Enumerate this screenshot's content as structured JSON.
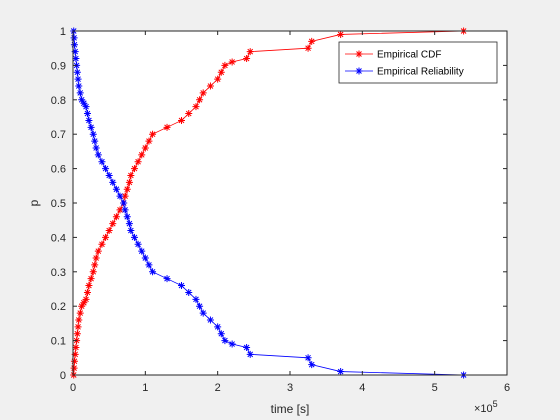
{
  "chart_data": {
    "type": "line",
    "title": "",
    "xlabel": "time [s]",
    "ylabel": "p",
    "x_exponent_label": "×10",
    "x_exponent_power": "5",
    "xlim": [
      0,
      6
    ],
    "ylim": [
      0,
      1
    ],
    "xticks": [
      0,
      1,
      2,
      3,
      4,
      5,
      6
    ],
    "yticks": [
      0,
      0.1,
      0.2,
      0.3,
      0.4,
      0.5,
      0.6,
      0.7,
      0.8,
      0.9,
      1
    ],
    "xtick_labels": [
      "0",
      "1",
      "2",
      "3",
      "4",
      "5",
      "6"
    ],
    "ytick_labels": [
      "0",
      "0.1",
      "0.2",
      "0.3",
      "0.4",
      "0.5",
      "0.6",
      "0.7",
      "0.8",
      "0.9",
      "1"
    ],
    "grid": false,
    "legend_position": "top-right",
    "legend_entries": [
      "Empirical CDF",
      "Empirical Reliability"
    ],
    "series": [
      {
        "name": "Empirical CDF",
        "color": "#ff0000",
        "marker": "asterisk",
        "x": [
          0.01,
          0.015,
          0.02,
          0.03,
          0.04,
          0.05,
          0.06,
          0.07,
          0.08,
          0.1,
          0.12,
          0.15,
          0.18,
          0.2,
          0.22,
          0.25,
          0.28,
          0.3,
          0.32,
          0.35,
          0.4,
          0.45,
          0.5,
          0.55,
          0.6,
          0.65,
          0.7,
          0.72,
          0.75,
          0.78,
          0.8,
          0.85,
          0.9,
          0.95,
          1.0,
          1.05,
          1.1,
          1.3,
          1.5,
          1.6,
          1.7,
          1.75,
          1.8,
          1.9,
          2.0,
          2.05,
          2.1,
          2.2,
          2.4,
          2.45,
          3.25,
          3.3,
          3.7,
          5.4
        ],
        "y": [
          0.0,
          0.02,
          0.04,
          0.06,
          0.08,
          0.1,
          0.12,
          0.14,
          0.16,
          0.18,
          0.2,
          0.21,
          0.22,
          0.24,
          0.26,
          0.28,
          0.3,
          0.32,
          0.34,
          0.36,
          0.38,
          0.4,
          0.42,
          0.44,
          0.46,
          0.48,
          0.5,
          0.52,
          0.54,
          0.56,
          0.58,
          0.6,
          0.62,
          0.64,
          0.66,
          0.68,
          0.7,
          0.72,
          0.74,
          0.76,
          0.78,
          0.8,
          0.82,
          0.84,
          0.86,
          0.88,
          0.9,
          0.91,
          0.92,
          0.94,
          0.95,
          0.97,
          0.99,
          1.0
        ]
      },
      {
        "name": "Empirical Reliability",
        "color": "#0000ff",
        "marker": "asterisk",
        "x": [
          0.01,
          0.015,
          0.02,
          0.03,
          0.04,
          0.05,
          0.06,
          0.07,
          0.08,
          0.1,
          0.12,
          0.15,
          0.18,
          0.2,
          0.22,
          0.25,
          0.28,
          0.3,
          0.32,
          0.35,
          0.4,
          0.45,
          0.5,
          0.55,
          0.6,
          0.65,
          0.7,
          0.72,
          0.75,
          0.78,
          0.8,
          0.85,
          0.9,
          0.95,
          1.0,
          1.05,
          1.1,
          1.3,
          1.5,
          1.6,
          1.7,
          1.75,
          1.8,
          1.9,
          2.0,
          2.05,
          2.1,
          2.2,
          2.4,
          2.45,
          3.25,
          3.3,
          3.7,
          5.4
        ],
        "y": [
          1.0,
          0.98,
          0.96,
          0.94,
          0.92,
          0.9,
          0.88,
          0.86,
          0.84,
          0.82,
          0.8,
          0.79,
          0.78,
          0.76,
          0.74,
          0.72,
          0.7,
          0.68,
          0.66,
          0.64,
          0.62,
          0.6,
          0.58,
          0.56,
          0.54,
          0.52,
          0.5,
          0.48,
          0.46,
          0.44,
          0.42,
          0.4,
          0.38,
          0.36,
          0.34,
          0.32,
          0.3,
          0.28,
          0.26,
          0.24,
          0.22,
          0.2,
          0.18,
          0.16,
          0.14,
          0.12,
          0.1,
          0.09,
          0.08,
          0.06,
          0.05,
          0.03,
          0.01,
          0.0
        ]
      }
    ]
  }
}
